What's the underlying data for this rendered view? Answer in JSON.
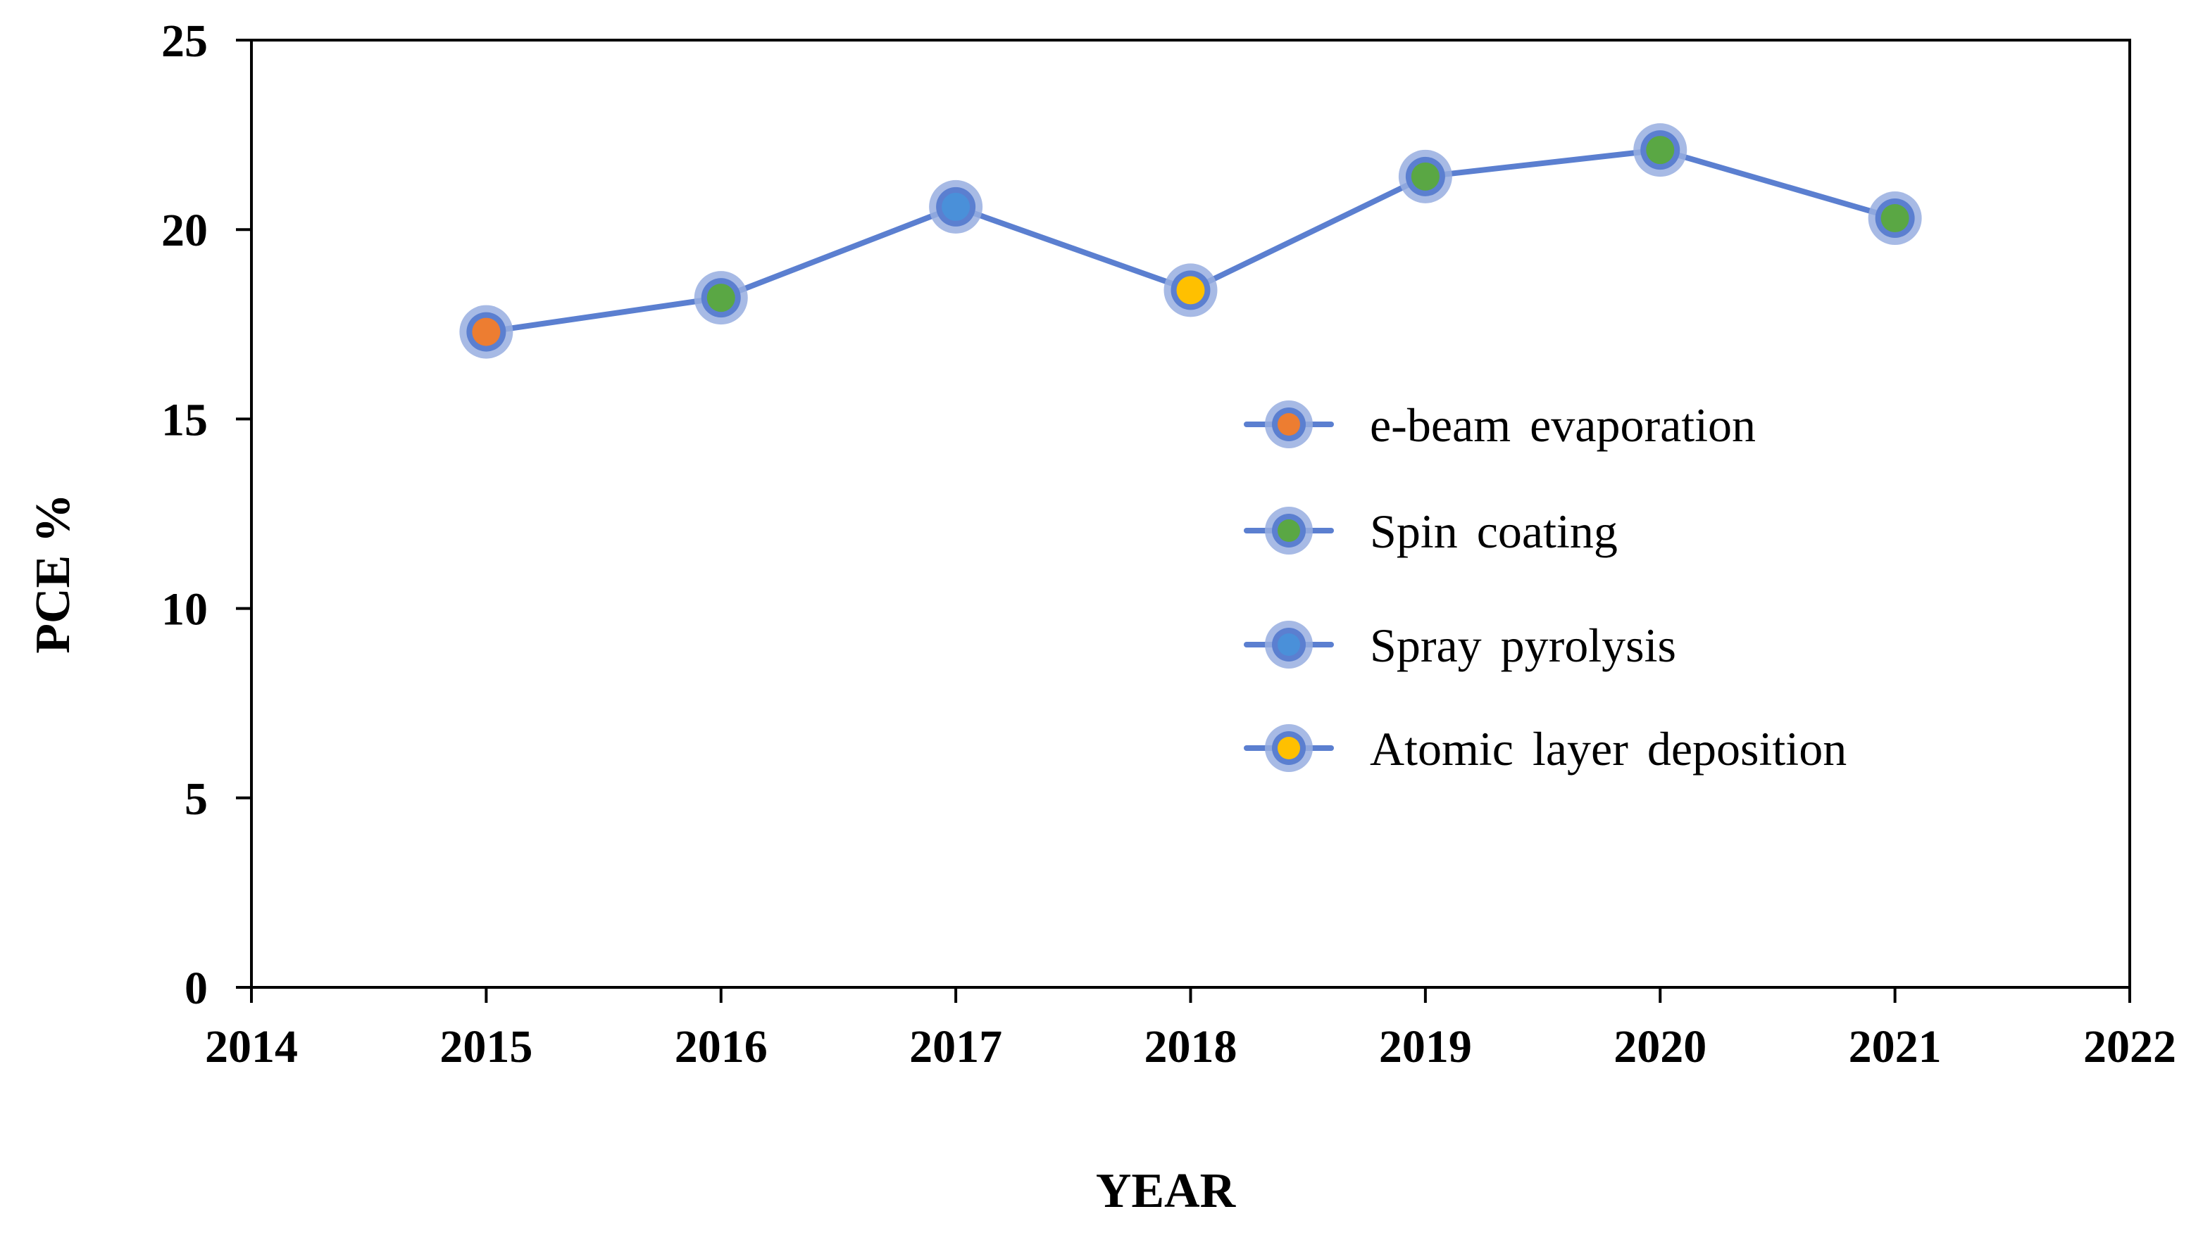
{
  "chart_data": {
    "type": "line",
    "title": "",
    "xlabel": "YEAR",
    "ylabel": "PCE %",
    "xlim": [
      2014,
      2022
    ],
    "ylim": [
      0,
      25
    ],
    "xticks": [
      2014,
      2015,
      2016,
      2017,
      2018,
      2019,
      2020,
      2021,
      2022
    ],
    "yticks": [
      0,
      5,
      10,
      15,
      20,
      25
    ],
    "grid": false,
    "legend_position": "center-right",
    "line_color": "#5b7fd0",
    "halo_color": "#98aee0",
    "series": [
      {
        "name": "PCE",
        "x": [
          2015,
          2016,
          2017,
          2018,
          2019,
          2020,
          2021
        ],
        "y": [
          17.3,
          18.2,
          20.6,
          18.4,
          21.4,
          22.1,
          20.3
        ],
        "methods": [
          "e-beam evaporation",
          "Spin coating",
          "Spray pyrolysis",
          "Atomic layer deposition",
          "Spin coating",
          "Spin coating",
          "Spin coating"
        ]
      }
    ],
    "legend": [
      {
        "label": "e-beam evaporation",
        "color": "#ed7d31"
      },
      {
        "label": "Spin coating",
        "color": "#5aa744"
      },
      {
        "label": "Spray pyrolysis",
        "color": "#4a90d9"
      },
      {
        "label": "Atomic layer deposition",
        "color": "#ffc000"
      }
    ]
  }
}
